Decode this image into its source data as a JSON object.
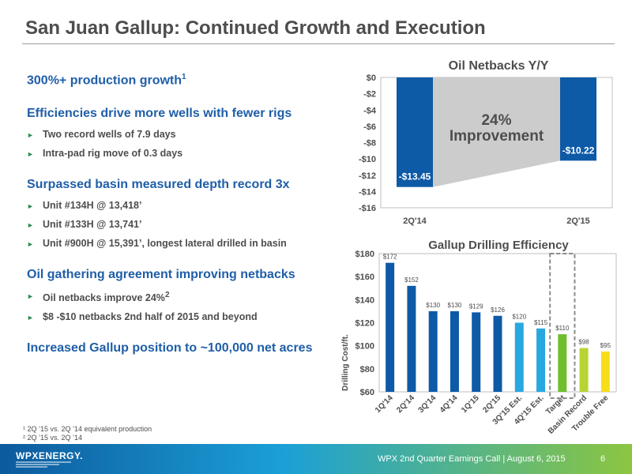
{
  "slide": {
    "title": "San Juan Gallup: Continued Growth and Execution",
    "bullets": {
      "b1": "300%+ production growth",
      "b1_sup": "1",
      "b2": "Efficiencies drive more wells with fewer rigs",
      "b2_subs": [
        "Two record wells of 7.9 days",
        "Intra-pad rig move of 0.3 days"
      ],
      "b3": "Surpassed basin measured depth record 3x",
      "b3_subs": [
        "Unit #134H @ 13,418’",
        "Unit #133H @ 13,741’",
        "Unit #900H @ 15,391’, longest lateral drilled in basin"
      ],
      "b4": "Oil gathering agreement improving netbacks",
      "b4_sub1": "Oil netbacks improve 24%",
      "b4_sub1_sup": "2",
      "b4_sub2": "$8 -$10 netbacks 2nd half of 2015 and beyond",
      "b5": "Increased Gallup position to ~100,000 net acres"
    },
    "footnotes": [
      "¹ 2Q ’15 vs. 2Q ’14 equivalent production",
      "² 2Q ’15 vs. 2Q ’14"
    ],
    "footer": {
      "logo": "WPXENERGY.",
      "text": "WPX 2nd Quarter Earnings Call  |  August 6, 2015",
      "page": "6"
    }
  },
  "colors": {
    "title_gray": "#4d4d4d",
    "heading_blue": "#1f5ea8",
    "bar_dark_blue": "#0d5aa7",
    "bar_light_blue": "#29a8e0",
    "bar_green": "#6fbe2e",
    "bar_lime": "#b7d433",
    "bar_yellow": "#f7de1b",
    "improvement_gray": "#cccccc"
  },
  "chart_data": [
    {
      "type": "bar",
      "title": "Oil Netbacks Y/Y",
      "categories": [
        "2Q'14",
        "2Q'15"
      ],
      "values": [
        -13.45,
        -10.22
      ],
      "data_labels": [
        "-$13.45",
        "-$10.22"
      ],
      "y_ticks": [
        "$0",
        "-$2",
        "-$4",
        "-$6",
        "-$8",
        "-$10",
        "-$12",
        "-$14",
        "-$16"
      ],
      "ylim": [
        -16,
        0
      ],
      "annotation": [
        "24%",
        "Improvement"
      ],
      "grid": false
    },
    {
      "type": "bar",
      "title": "Gallup Drilling Efficiency",
      "ylabel": "Drilling Cost/ft.",
      "categories": [
        "1Q'14",
        "2Q'14",
        "3Q'14",
        "4Q'14",
        "1Q'15",
        "2Q'15",
        "3Q'15 Est.",
        "4Q'15 Est.",
        "Target",
        "Basin Record",
        "Trouble Free"
      ],
      "values": [
        172,
        152,
        130,
        130,
        129,
        126,
        120,
        115,
        110,
        98,
        95
      ],
      "data_labels": [
        "$172",
        "$152",
        "$130",
        "$130",
        "$129",
        "$126",
        "$120",
        "$115",
        "$110",
        "$98",
        "$95"
      ],
      "bar_colors": [
        "dark_blue",
        "dark_blue",
        "dark_blue",
        "dark_blue",
        "dark_blue",
        "dark_blue",
        "light_blue",
        "light_blue",
        "green",
        "lime",
        "yellow"
      ],
      "y_ticks": [
        "$60",
        "$80",
        "$100",
        "$120",
        "$140",
        "$160",
        "$180"
      ],
      "ylim": [
        60,
        180
      ],
      "highlighted_category": "Target",
      "grid": false
    }
  ]
}
